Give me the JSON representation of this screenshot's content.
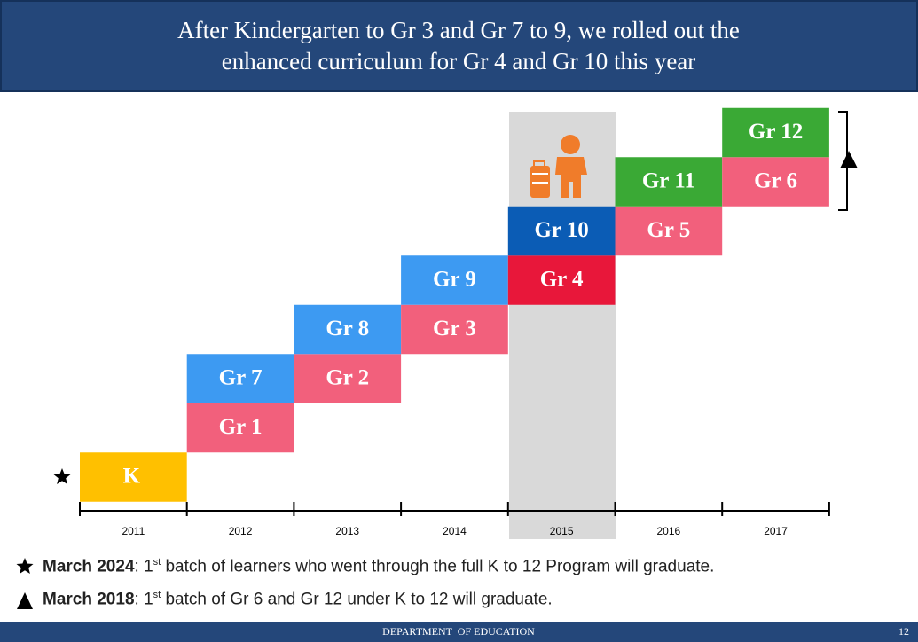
{
  "header": {
    "title_lines": [
      "After Kindergarten to Gr 3 and Gr 7 to 9, we rolled out the",
      "enhanced curriculum for Gr 4 and Gr 10 this year"
    ]
  },
  "timeline": {
    "columns": [
      {
        "year": "2011",
        "blocks": [
          {
            "label": "K",
            "color": "#ffc000"
          }
        ]
      },
      {
        "year": "2012",
        "blocks": [
          {
            "label": "Gr 1",
            "color": "#f2607c"
          },
          {
            "label": "Gr 7",
            "color": "#3d9af2"
          }
        ]
      },
      {
        "year": "2013",
        "blocks": [
          {
            "label": "Gr 2",
            "color": "#f2607c"
          },
          {
            "label": "Gr 8",
            "color": "#3d9af2"
          }
        ]
      },
      {
        "year": "2014",
        "blocks": [
          {
            "label": "Gr 3",
            "color": "#f2607c"
          },
          {
            "label": "Gr 9",
            "color": "#3d9af2"
          }
        ]
      },
      {
        "year": "2015",
        "blocks": [
          {
            "label": "Gr 4",
            "color": "#e8173a"
          },
          {
            "label": "Gr 10",
            "color": "#0b5cb5"
          }
        ]
      },
      {
        "year": "2016",
        "blocks": [
          {
            "label": "Gr 5",
            "color": "#f2607c"
          },
          {
            "label": "Gr 11",
            "color": "#3aa935"
          }
        ]
      },
      {
        "year": "2017",
        "blocks": [
          {
            "label": "Gr 6",
            "color": "#f2607c"
          },
          {
            "label": "Gr 12",
            "color": "#3aa935"
          }
        ]
      }
    ]
  },
  "notes": [
    {
      "bold": "March 2024",
      "before": ": 1",
      "sup": "st",
      "after": " batch of learners who went through the full K to 12 Program will graduate."
    },
    {
      "bold": "March 2018",
      "before": ": 1",
      "sup": "st",
      "after": " batch of Gr 6 and Gr 12 under K to 12 will graduate."
    }
  ],
  "footer": {
    "org": "DEPARTMENT  OF EDUCATION",
    "page": "12"
  }
}
